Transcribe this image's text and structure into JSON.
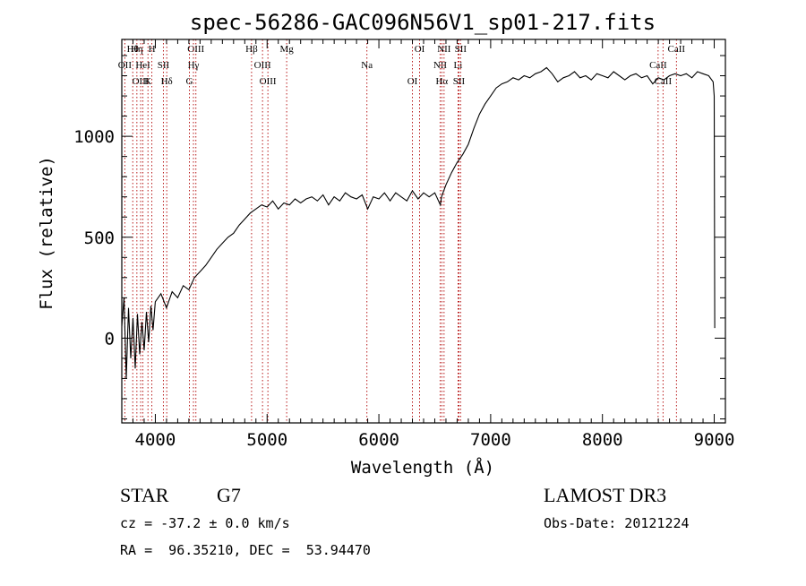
{
  "chart_data": {
    "type": "line",
    "title": "spec-56286-GAC096N56V1_sp01-217.fits",
    "xlabel": "Wavelength (Å)",
    "ylabel": "Flux (relative)",
    "xlim": [
      3700,
      9100
    ],
    "ylim": [
      -420,
      1480
    ],
    "x_ticks": [
      4000,
      5000,
      6000,
      7000,
      8000,
      9000
    ],
    "x_tick_labels": [
      "4000",
      "5000",
      "6000",
      "7000",
      "8000",
      "9000"
    ],
    "y_ticks": [
      0,
      500,
      1000
    ],
    "y_tick_labels": [
      "0",
      "500",
      "1000"
    ],
    "grid": false,
    "series": [
      {
        "name": "flux",
        "x": [
          3700,
          3720,
          3740,
          3760,
          3780,
          3800,
          3820,
          3840,
          3860,
          3880,
          3900,
          3920,
          3940,
          3960,
          3980,
          4000,
          4050,
          4100,
          4150,
          4200,
          4250,
          4300,
          4350,
          4400,
          4450,
          4500,
          4550,
          4600,
          4650,
          4700,
          4750,
          4800,
          4850,
          4900,
          4950,
          5000,
          5050,
          5100,
          5150,
          5200,
          5250,
          5300,
          5350,
          5400,
          5450,
          5500,
          5550,
          5600,
          5650,
          5700,
          5750,
          5800,
          5850,
          5900,
          5950,
          6000,
          6050,
          6100,
          6150,
          6200,
          6250,
          6300,
          6350,
          6400,
          6450,
          6500,
          6550,
          6560,
          6600,
          6650,
          6700,
          6750,
          6800,
          6850,
          6900,
          6950,
          7000,
          7050,
          7100,
          7150,
          7200,
          7250,
          7300,
          7350,
          7400,
          7450,
          7500,
          7550,
          7600,
          7650,
          7700,
          7750,
          7800,
          7850,
          7900,
          7950,
          8000,
          8050,
          8100,
          8150,
          8200,
          8250,
          8300,
          8350,
          8400,
          8450,
          8500,
          8550,
          8600,
          8650,
          8700,
          8750,
          8800,
          8850,
          8900,
          8950,
          8990,
          9000,
          9005
        ],
        "y": [
          60,
          200,
          -200,
          150,
          -100,
          100,
          -150,
          120,
          -80,
          80,
          -60,
          130,
          -20,
          160,
          40,
          180,
          220,
          150,
          230,
          200,
          260,
          240,
          300,
          330,
          360,
          400,
          440,
          470,
          500,
          520,
          560,
          590,
          620,
          640,
          660,
          650,
          680,
          640,
          670,
          660,
          690,
          670,
          690,
          700,
          680,
          710,
          660,
          700,
          680,
          720,
          700,
          690,
          710,
          640,
          700,
          690,
          720,
          680,
          720,
          700,
          680,
          730,
          690,
          720,
          700,
          720,
          660,
          700,
          760,
          820,
          870,
          910,
          960,
          1040,
          1110,
          1160,
          1200,
          1240,
          1260,
          1270,
          1290,
          1280,
          1300,
          1290,
          1310,
          1320,
          1340,
          1310,
          1270,
          1290,
          1300,
          1320,
          1290,
          1300,
          1280,
          1310,
          1300,
          1290,
          1320,
          1300,
          1280,
          1300,
          1310,
          1290,
          1300,
          1260,
          1290,
          1280,
          1300,
          1310,
          1300,
          1310,
          1290,
          1320,
          1310,
          1300,
          1270,
          1200,
          50
        ]
      }
    ],
    "lines": [
      {
        "label": "Hθ",
        "x": 3798
      },
      {
        "label": "OII",
        "x": 3727
      },
      {
        "label": "OIII",
        "x": 3869
      },
      {
        "label": "Hη",
        "x": 3835
      },
      {
        "label": "HeI",
        "x": 3889
      },
      {
        "label": "K",
        "x": 3934
      },
      {
        "label": "H",
        "x": 3969
      },
      {
        "label": "SII",
        "x": 4072
      },
      {
        "label": "Hδ",
        "x": 4102
      },
      {
        "label": "OIII",
        "x": 4363
      },
      {
        "label": "Hγ",
        "x": 4341
      },
      {
        "label": "G",
        "x": 4305
      },
      {
        "label": "Hβ",
        "x": 4861
      },
      {
        "label": "OIII",
        "x": 4959
      },
      {
        "label": "OIII",
        "x": 5007
      },
      {
        "label": "Mg",
        "x": 5175
      },
      {
        "label": "Na",
        "x": 5893
      },
      {
        "label": "OI",
        "x": 6300
      },
      {
        "label": "OI",
        "x": 6364
      },
      {
        "label": "NII",
        "x": 6548
      },
      {
        "label": "Hα",
        "x": 6563
      },
      {
        "label": "NII",
        "x": 6583
      },
      {
        "label": "Li",
        "x": 6708
      },
      {
        "label": "SII",
        "x": 6716
      },
      {
        "label": "SII",
        "x": 6731
      },
      {
        "label": "CaII",
        "x": 8498
      },
      {
        "label": "CaII",
        "x": 8542
      },
      {
        "label": "CaII",
        "x": 8662
      }
    ]
  },
  "info": {
    "class_label": "STAR",
    "subclass": "G7",
    "velocity": "cz = -37.2 ± 0.0 km/s",
    "coords": "RA =  96.35210, DEC =  53.94470",
    "survey": "LAMOST DR3",
    "obs_date": "Obs-Date: 20121224"
  }
}
